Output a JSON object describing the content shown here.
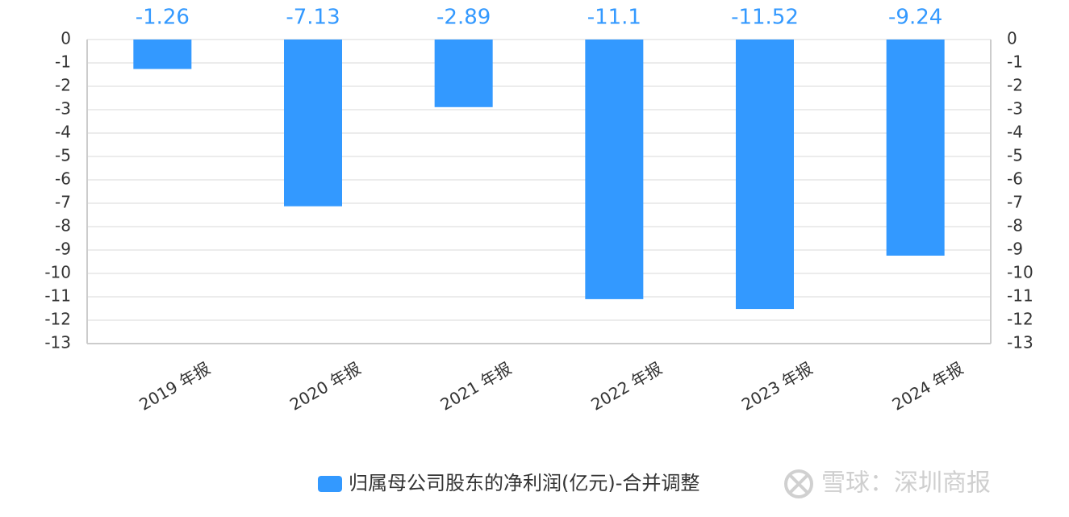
{
  "chart_data": {
    "type": "bar",
    "categories": [
      "2019 年报",
      "2020 年报",
      "2021 年报",
      "2022 年报",
      "2023 年报",
      "2024 年报"
    ],
    "series": [
      {
        "name": "归属母公司股东的净利润(亿元)-合并调整",
        "color": "#3399ff",
        "values": [
          -1.26,
          -7.13,
          -2.89,
          -11.1,
          -11.52,
          -9.24
        ]
      }
    ],
    "ylim": [
      -13,
      0
    ],
    "yticks": [
      0,
      -1,
      -2,
      -3,
      -4,
      -5,
      -6,
      -7,
      -8,
      -9,
      -10,
      -11,
      -12,
      -13
    ],
    "y2lim": [
      -13,
      0
    ],
    "y2ticks": [
      0,
      -1,
      -2,
      -3,
      -4,
      -5,
      -6,
      -7,
      -8,
      -9,
      -10,
      -11,
      -12,
      -13
    ],
    "grid": true,
    "legend": "bottom",
    "watermark": "雪球：深圳商报"
  }
}
